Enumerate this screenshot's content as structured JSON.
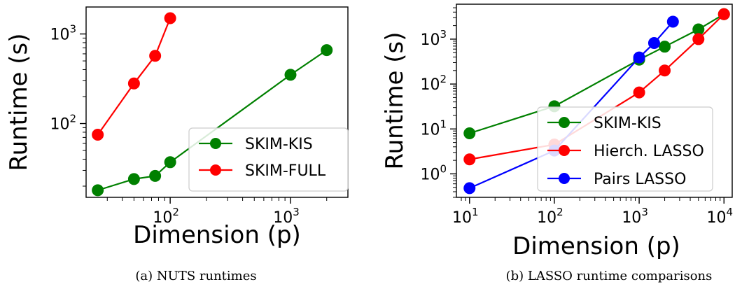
{
  "chart_data": [
    {
      "type": "line",
      "xscale": "log",
      "yscale": "log",
      "xlabel": "Dimension (p)",
      "ylabel": "Runtime (s)",
      "xlim": [
        20,
        3000
      ],
      "ylim": [
        15,
        2000
      ],
      "x_ticks": [
        100,
        1000
      ],
      "x_tick_labels": [
        {
          "base": "10",
          "exp": "2"
        },
        {
          "base": "10",
          "exp": "3"
        }
      ],
      "y_ticks": [
        100,
        1000
      ],
      "y_tick_labels": [
        {
          "base": "10",
          "exp": "2"
        },
        {
          "base": "10",
          "exp": "3"
        }
      ],
      "legend_position": "lower-right",
      "series": [
        {
          "name": "SKIM-KIS",
          "color": "#008000",
          "x": [
            25,
            50,
            75,
            100,
            1000,
            2000
          ],
          "y": [
            18,
            24,
            26,
            37,
            350,
            660
          ]
        },
        {
          "name": "SKIM-FULL",
          "color": "#ff0000",
          "x": [
            25,
            50,
            75,
            100
          ],
          "y": [
            75,
            280,
            570,
            1500
          ]
        }
      ],
      "caption": "(a)  NUTS runtimes"
    },
    {
      "type": "line",
      "xscale": "log",
      "yscale": "log",
      "xlabel": "Dimension (p)",
      "ylabel": "Runtime (s)",
      "xlim": [
        7,
        12500
      ],
      "ylim": [
        0.3,
        6000
      ],
      "x_ticks": [
        10,
        100,
        1000,
        10000
      ],
      "x_tick_labels": [
        {
          "base": "10",
          "exp": "1"
        },
        {
          "base": "10",
          "exp": "2"
        },
        {
          "base": "10",
          "exp": "3"
        },
        {
          "base": "10",
          "exp": "4"
        }
      ],
      "y_ticks": [
        1,
        10,
        100,
        1000
      ],
      "y_tick_labels": [
        {
          "base": "10",
          "exp": "0"
        },
        {
          "base": "10",
          "exp": "1"
        },
        {
          "base": "10",
          "exp": "2"
        },
        {
          "base": "10",
          "exp": "3"
        }
      ],
      "legend_position": "center-right",
      "series": [
        {
          "name": "SKIM-KIS",
          "color": "#008000",
          "x": [
            10,
            100,
            1000,
            2000,
            5000,
            10000
          ],
          "y": [
            8,
            32,
            350,
            680,
            1650,
            3600
          ]
        },
        {
          "name": "Hierch. LASSO",
          "color": "#ff0000",
          "x": [
            10,
            100,
            1000,
            2000,
            5000,
            10000
          ],
          "y": [
            2.1,
            4.5,
            65,
            200,
            1000,
            3600
          ]
        },
        {
          "name": "Pairs LASSO",
          "color": "#0000ff",
          "x": [
            10,
            100,
            1000,
            1500,
            2500
          ],
          "y": [
            0.48,
            3.3,
            390,
            820,
            2450
          ]
        }
      ],
      "caption": "(b)  LASSO runtime comparisons"
    }
  ],
  "colors": {
    "green": "#008000",
    "red": "#ff0000",
    "blue": "#0000ff"
  }
}
